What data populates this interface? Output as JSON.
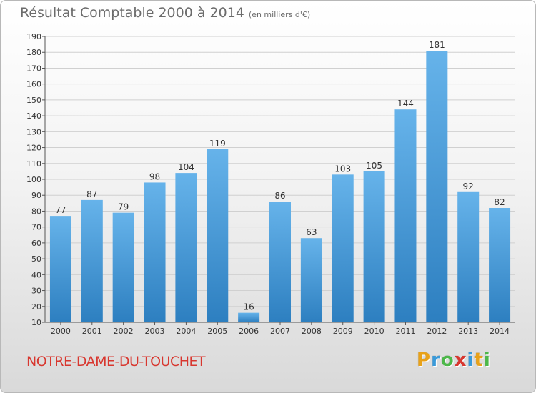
{
  "title": "Résultat Comptable 2000 à 2014",
  "subtitle": "(en milliers d'€)",
  "place": "NOTRE-DAME-DU-TOUCHET",
  "logo": {
    "letters": [
      "P",
      "r",
      "o",
      "x",
      "i",
      "t",
      "i"
    ],
    "colors": [
      "#e8a21a",
      "#3a9ad9",
      "#4db84a",
      "#d8372f",
      "#3a9ad9",
      "#e8a21a",
      "#4db84a"
    ]
  },
  "colors": {
    "bar_light": "#66b3ea",
    "bar_dark": "#2d7fc0",
    "grid": "#d0d0d0"
  },
  "chart_data": {
    "type": "bar",
    "title": "Résultat Comptable 2000 à 2014",
    "categories": [
      "2000",
      "2001",
      "2002",
      "2003",
      "2004",
      "2005",
      "2006",
      "2007",
      "2008",
      "2009",
      "2010",
      "2011",
      "2012",
      "2013",
      "2014"
    ],
    "values": [
      77,
      87,
      79,
      98,
      104,
      119,
      16,
      86,
      63,
      103,
      105,
      144,
      181,
      92,
      82
    ],
    "ylim": [
      10,
      190
    ],
    "yticks": [
      10,
      20,
      30,
      40,
      50,
      60,
      70,
      80,
      90,
      100,
      110,
      120,
      130,
      140,
      150,
      160,
      170,
      180,
      190
    ],
    "grid": true,
    "xlabel": "",
    "ylabel": ""
  }
}
